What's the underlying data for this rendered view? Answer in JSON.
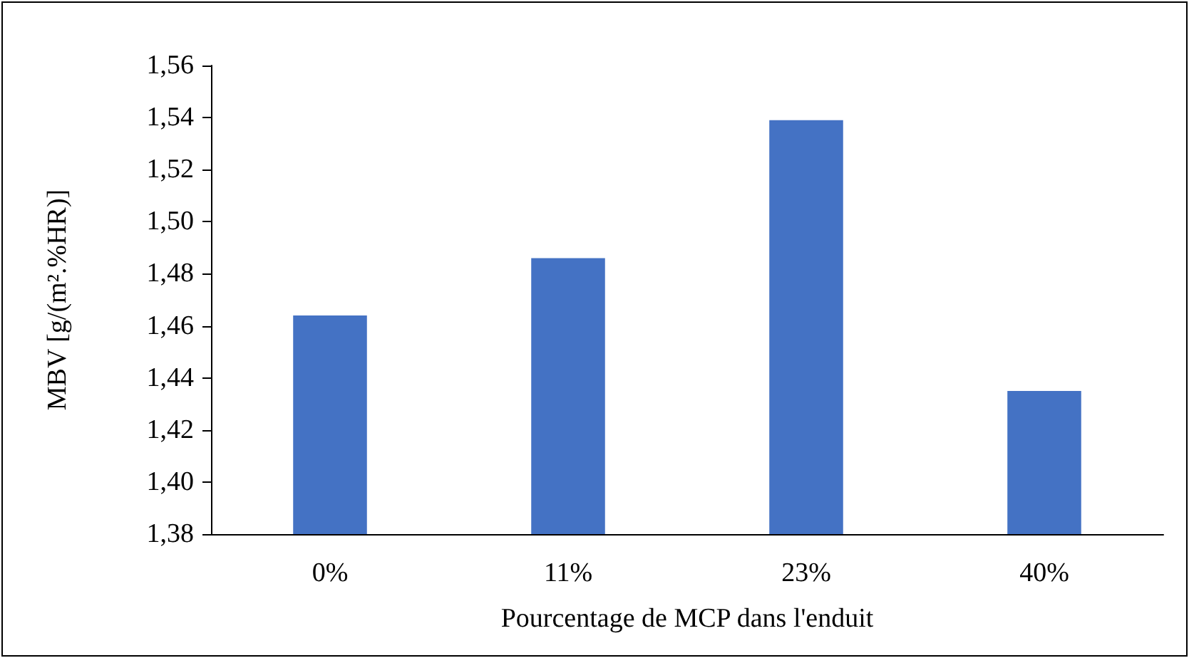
{
  "chart_data": {
    "type": "bar",
    "xlabel": "Pourcentage de MCP dans l'enduit",
    "ylabel": "MBV [g/(m².%HR)]",
    "categories": [
      "0%",
      "11%",
      "23%",
      "40%"
    ],
    "values": [
      1.464,
      1.486,
      1.539,
      1.435
    ],
    "color": "#4472c4",
    "ylim": [
      1.38,
      1.56
    ],
    "yticks": [
      {
        "value": 1.38,
        "label": "1,38"
      },
      {
        "value": 1.4,
        "label": "1,40"
      },
      {
        "value": 1.42,
        "label": "1,42"
      },
      {
        "value": 1.44,
        "label": "1,44"
      },
      {
        "value": 1.46,
        "label": "1,46"
      },
      {
        "value": 1.48,
        "label": "1,48"
      },
      {
        "value": 1.5,
        "label": "1,50"
      },
      {
        "value": 1.52,
        "label": "1,52"
      },
      {
        "value": 1.54,
        "label": "1,54"
      },
      {
        "value": 1.56,
        "label": "1,56"
      }
    ],
    "grid": false
  }
}
